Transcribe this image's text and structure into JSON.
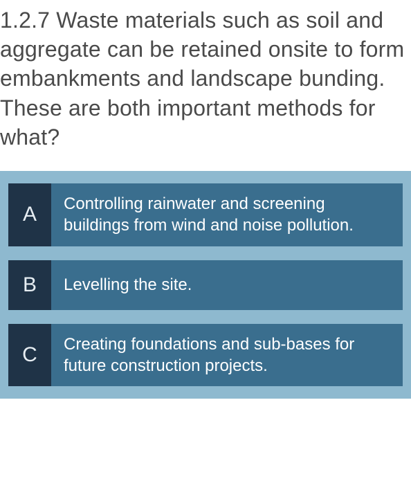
{
  "question": {
    "number": "1.2.7",
    "text": "1.2.7 Waste materials such as soil and aggregate can be retained onsite to form embankments and landscape bunding. These are both important methods for what?",
    "text_color": "#4a4a4a",
    "fontsize": 32
  },
  "answers_container": {
    "background_color": "#8eb9cf",
    "gap": 20
  },
  "answer_style": {
    "row_background": "#3a6e8e",
    "letter_background": "#1f3347",
    "letter_color": "#e6edf2",
    "text_color": "#ffffff",
    "letter_fontsize": 30,
    "text_fontsize": 24
  },
  "answers": [
    {
      "letter": "A",
      "text": "Controlling rainwater and screening buildings from wind and noise pollution."
    },
    {
      "letter": "B",
      "text": "Levelling the site."
    },
    {
      "letter": "C",
      "text": "Creating foundations and sub-bases for future construction projects."
    }
  ]
}
